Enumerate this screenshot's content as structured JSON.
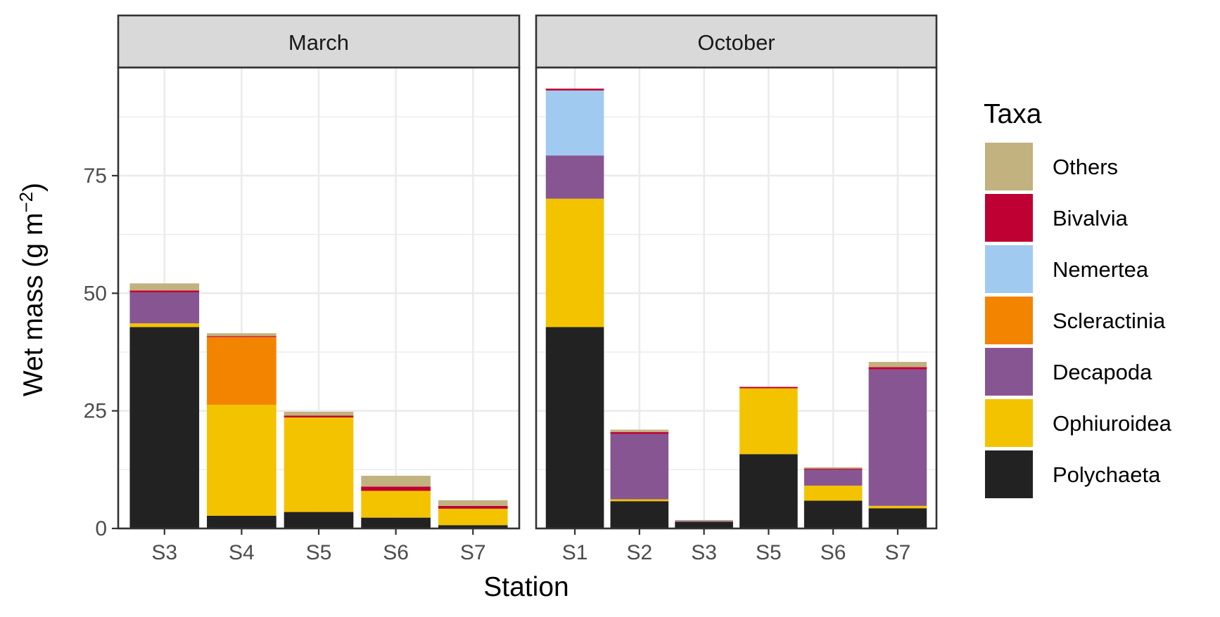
{
  "chart_data": {
    "type": "bar",
    "stacked": true,
    "facet_variable": "Month",
    "xlabel": "Station",
    "ylabel": {
      "main": "Wet mass (g m",
      "superscript": "−2",
      "close": ")"
    },
    "ylim": [
      0,
      98
    ],
    "yticks": [
      0,
      25,
      50,
      75
    ],
    "grid": true,
    "legend": {
      "title": "Taxa",
      "position": "right"
    },
    "taxa_stack_order": [
      "Polychaeta",
      "Ophiuroidea",
      "Decapoda",
      "Scleractinia",
      "Nemertea",
      "Bivalvia",
      "Others"
    ],
    "legend_order": [
      "Others",
      "Bivalvia",
      "Nemertea",
      "Scleractinia",
      "Decapoda",
      "Ophiuroidea",
      "Polychaeta"
    ],
    "colors": {
      "Others": "#c2b280",
      "Bivalvia": "#be0032",
      "Nemertea": "#a1caf1",
      "Scleractinia": "#f38400",
      "Decapoda": "#875692",
      "Ophiuroidea": "#f3c300",
      "Polychaeta": "#222222"
    },
    "facets": [
      {
        "name": "March",
        "categories": [
          "S3",
          "S4",
          "S5",
          "S6",
          "S7"
        ],
        "series": [
          {
            "name": "Polychaeta",
            "values": [
              42.8,
              2.7,
              3.5,
              2.3,
              0.7
            ]
          },
          {
            "name": "Ophiuroidea",
            "values": [
              0.8,
              23.6,
              20.1,
              5.7,
              3.5
            ]
          },
          {
            "name": "Decapoda",
            "values": [
              6.6,
              0.0,
              0.0,
              0.0,
              0.0
            ]
          },
          {
            "name": "Scleractinia",
            "values": [
              0.0,
              14.4,
              0.0,
              0.0,
              0.0
            ]
          },
          {
            "name": "Nemertea",
            "values": [
              0.0,
              0.0,
              0.0,
              0.0,
              0.0
            ]
          },
          {
            "name": "Bivalvia",
            "values": [
              0.4,
              0.2,
              0.4,
              0.9,
              0.6
            ]
          },
          {
            "name": "Others",
            "values": [
              1.5,
              0.6,
              0.8,
              2.3,
              1.2
            ]
          }
        ]
      },
      {
        "name": "October",
        "categories": [
          "S1",
          "S2",
          "S3",
          "S5",
          "S6",
          "S7"
        ],
        "series": [
          {
            "name": "Polychaeta",
            "values": [
              42.8,
              5.8,
              1.4,
              15.8,
              5.9,
              4.3
            ]
          },
          {
            "name": "Ophiuroidea",
            "values": [
              27.3,
              0.4,
              0.0,
              14.0,
              3.2,
              0.5
            ]
          },
          {
            "name": "Decapoda",
            "values": [
              9.2,
              13.9,
              0.2,
              0.0,
              3.4,
              29.0
            ]
          },
          {
            "name": "Scleractinia",
            "values": [
              0.0,
              0.0,
              0.0,
              0.0,
              0.0,
              0.0
            ]
          },
          {
            "name": "Nemertea",
            "values": [
              13.8,
              0.0,
              0.0,
              0.0,
              0.0,
              0.0
            ]
          },
          {
            "name": "Bivalvia",
            "values": [
              0.4,
              0.4,
              0.0,
              0.3,
              0.2,
              0.5
            ]
          },
          {
            "name": "Others",
            "values": [
              0.0,
              0.5,
              0.2,
              0.0,
              0.3,
              1.1
            ]
          }
        ]
      }
    ]
  }
}
